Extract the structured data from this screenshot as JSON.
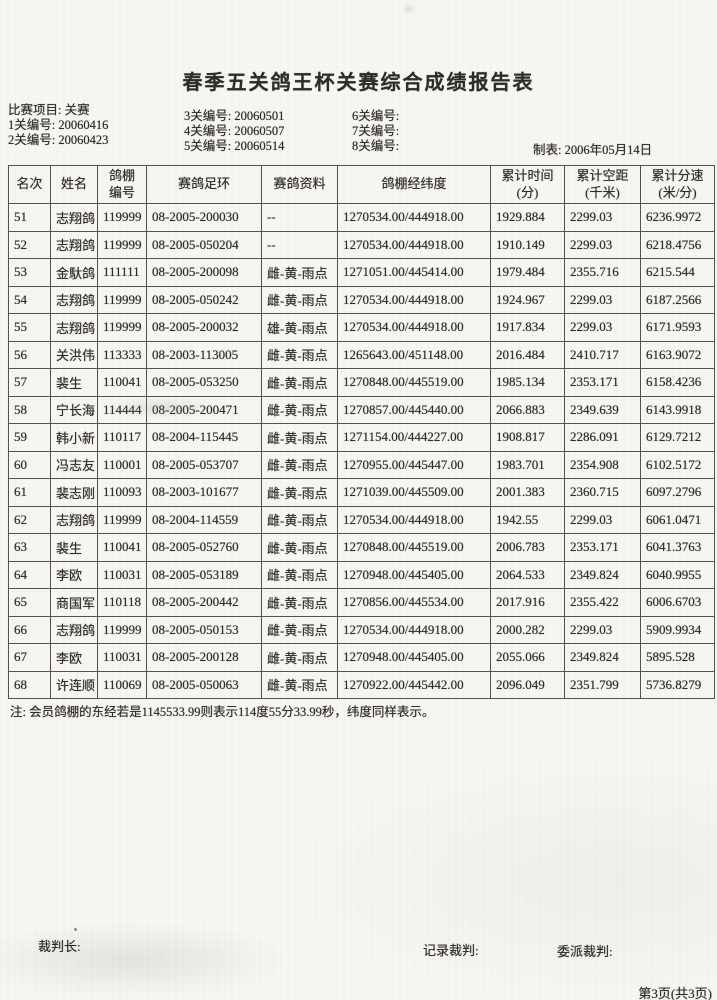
{
  "colors": {
    "paper": "#f7f6f3",
    "ink": "#2e2c29",
    "table_border": "#55524e"
  },
  "document": {
    "title": "春季五关鸽王杯关赛综合成绩报告表",
    "race_info": {
      "left": [
        "比赛项目: 关赛",
        "1关编号: 20060416",
        "2关编号: 20060423"
      ],
      "middle": [
        "3关编号: 20060501",
        "4关编号: 20060507",
        "5关编号: 20060514"
      ],
      "right": [
        "6关编号:",
        "7关编号:",
        "8关编号:"
      ],
      "made_date": "制表: 2006年05月14日"
    },
    "table": {
      "columns": [
        {
          "key": "rank",
          "label": "名次"
        },
        {
          "key": "name",
          "label": "姓名"
        },
        {
          "key": "loft-no",
          "label": "鸽棚\n编号"
        },
        {
          "key": "ring-no",
          "label": "赛鸽足环"
        },
        {
          "key": "pigeon-info",
          "label": "赛鸽资料"
        },
        {
          "key": "coordinates",
          "label": "鸽棚经纬度"
        },
        {
          "key": "total-time",
          "label": "累计时间\n(分)"
        },
        {
          "key": "total-distance",
          "label": "累计空距\n(千米)"
        },
        {
          "key": "total-speed",
          "label": "累计分速\n(米/分)"
        }
      ],
      "rows": [
        [
          "51",
          "志翔鸽",
          "119999",
          "08-2005-200030",
          "--",
          "1270534.00/444918.00",
          "1929.884",
          "2299.03",
          "6236.9972"
        ],
        [
          "52",
          "志翔鸽",
          "119999",
          "08-2005-050204",
          "--",
          "1270534.00/444918.00",
          "1910.149",
          "2299.03",
          "6218.4756"
        ],
        [
          "53",
          "金馱鸽",
          "111111",
          "08-2005-200098",
          "雌-黄-雨点",
          "1271051.00/445414.00",
          "1979.484",
          "2355.716",
          "6215.544"
        ],
        [
          "54",
          "志翔鸽",
          "119999",
          "08-2005-050242",
          "雌-黄-雨点",
          "1270534.00/444918.00",
          "1924.967",
          "2299.03",
          "6187.2566"
        ],
        [
          "55",
          "志翔鸽",
          "119999",
          "08-2005-200032",
          "雄-黄-雨点",
          "1270534.00/444918.00",
          "1917.834",
          "2299.03",
          "6171.9593"
        ],
        [
          "56",
          "关洪伟",
          "113333",
          "08-2003-113005",
          "雌-黄-雨点",
          "1265643.00/451148.00",
          "2016.484",
          "2410.717",
          "6163.9072"
        ],
        [
          "57",
          "裴生",
          "110041",
          "08-2005-053250",
          "雌-黄-雨点",
          "1270848.00/445519.00",
          "1985.134",
          "2353.171",
          "6158.4236"
        ],
        [
          "58",
          "宁长海",
          "114444",
          "08-2005-200471",
          "雌-黄-雨点",
          "1270857.00/445440.00",
          "2066.883",
          "2349.639",
          "6143.9918"
        ],
        [
          "59",
          "韩小新",
          "110117",
          "08-2004-115445",
          "雌-黄-雨点",
          "1271154.00/444227.00",
          "1908.817",
          "2286.091",
          "6129.7212"
        ],
        [
          "60",
          "冯志友",
          "110001",
          "08-2005-053707",
          "雌-黄-雨点",
          "1270955.00/445447.00",
          "1983.701",
          "2354.908",
          "6102.5172"
        ],
        [
          "61",
          "裴志刚",
          "110093",
          "08-2003-101677",
          "雌-黄-雨点",
          "1271039.00/445509.00",
          "2001.383",
          "2360.715",
          "6097.2796"
        ],
        [
          "62",
          "志翔鸽",
          "119999",
          "08-2004-114559",
          "雌-黄-雨点",
          "1270534.00/444918.00",
          "1942.55",
          "2299.03",
          "6061.0471"
        ],
        [
          "63",
          "裴生",
          "110041",
          "08-2005-052760",
          "雌-黄-雨点",
          "1270848.00/445519.00",
          "2006.783",
          "2353.171",
          "6041.3763"
        ],
        [
          "64",
          "李欧",
          "110031",
          "08-2005-053189",
          "雌-黄-雨点",
          "1270948.00/445405.00",
          "2064.533",
          "2349.824",
          "6040.9955"
        ],
        [
          "65",
          "商国军",
          "110118",
          "08-2005-200442",
          "雌-黄-雨点",
          "1270856.00/445534.00",
          "2017.916",
          "2355.422",
          "6006.6703"
        ],
        [
          "66",
          "志翔鸽",
          "119999",
          "08-2005-050153",
          "雌-黄-雨点",
          "1270534.00/444918.00",
          "2000.282",
          "2299.03",
          "5909.9934"
        ],
        [
          "67",
          "李欧",
          "110031",
          "08-2005-200128",
          "雌-黄-雨点",
          "1270948.00/445405.00",
          "2055.066",
          "2349.824",
          "5895.528"
        ],
        [
          "68",
          "许连顺",
          "110069",
          "08-2005-050063",
          "雌-黄-雨点",
          "1270922.00/445442.00",
          "2096.049",
          "2351.799",
          "5736.8279"
        ]
      ]
    },
    "note": "注: 会员鸽棚的东经若是1145533.99则表示114度55分33.99秒，纬度同样表示。",
    "signatures": {
      "chief_judge": "裁判长:",
      "record_judge": "记录裁判:",
      "assigned_judge": "委派裁判:"
    },
    "page_indicator": "第3页(共3页)"
  }
}
